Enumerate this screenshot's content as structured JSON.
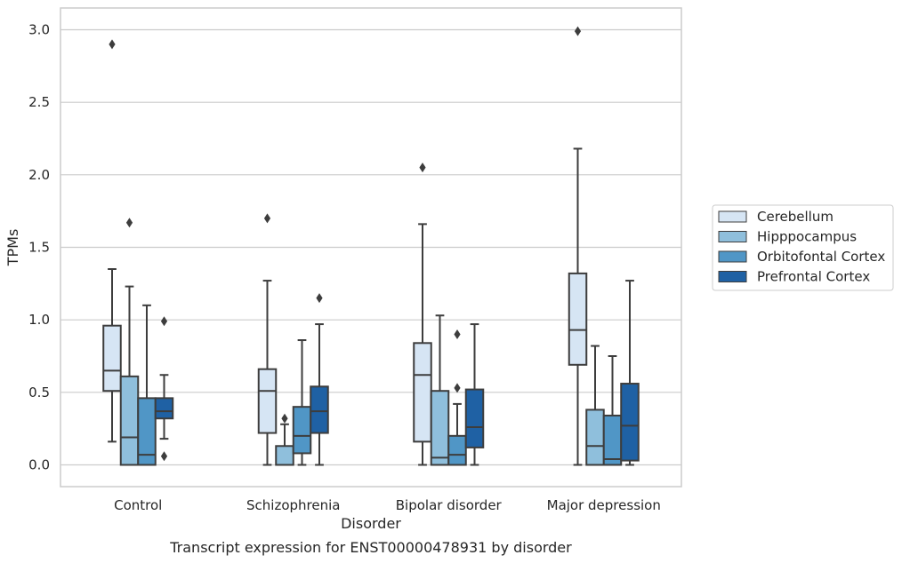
{
  "chart_data": {
    "type": "box",
    "xlabel": "Disorder",
    "ylabel": "TPMs",
    "caption": "Transcript expression for ENST00000478931 by disorder",
    "categories": [
      "Control",
      "Schizophrenia",
      "Bipolar disorder",
      "Major depression"
    ],
    "ylim": [
      -0.15,
      3.15
    ],
    "yticks": [
      0.0,
      0.5,
      1.0,
      1.5,
      2.0,
      2.5,
      3.0
    ],
    "ytick_labels": [
      "0.0",
      "0.5",
      "1.0",
      "1.5",
      "2.0",
      "2.5",
      "3.0"
    ],
    "grid": "horizontal",
    "legend_position": "right",
    "series": [
      {
        "name": "Cerebellum",
        "color": "#d6e5f4",
        "boxes": [
          {
            "min": 0.16,
            "q1": 0.51,
            "median": 0.65,
            "q3": 0.96,
            "max": 1.35,
            "outliers": [
              2.9
            ]
          },
          {
            "min": 0.0,
            "q1": 0.22,
            "median": 0.51,
            "q3": 0.66,
            "max": 1.27,
            "outliers": [
              1.7
            ]
          },
          {
            "min": 0.0,
            "q1": 0.16,
            "median": 0.62,
            "q3": 0.84,
            "max": 1.66,
            "outliers": [
              2.05
            ]
          },
          {
            "min": 0.0,
            "q1": 0.69,
            "median": 0.93,
            "q3": 1.32,
            "max": 2.18,
            "outliers": [
              2.99
            ]
          }
        ]
      },
      {
        "name": "Hipppocampus",
        "color": "#8fbfdc",
        "boxes": [
          {
            "min": 0.0,
            "q1": 0.0,
            "median": 0.19,
            "q3": 0.61,
            "max": 1.23,
            "outliers": [
              1.67
            ]
          },
          {
            "min": 0.0,
            "q1": 0.0,
            "median": 0.0,
            "q3": 0.13,
            "max": 0.28,
            "outliers": [
              0.32
            ]
          },
          {
            "min": 0.0,
            "q1": 0.0,
            "median": 0.05,
            "q3": 0.51,
            "max": 1.03,
            "outliers": []
          },
          {
            "min": 0.0,
            "q1": 0.0,
            "median": 0.13,
            "q3": 0.38,
            "max": 0.82,
            "outliers": []
          }
        ]
      },
      {
        "name": "Orbitofontal Cortex",
        "color": "#5096c6",
        "boxes": [
          {
            "min": 0.0,
            "q1": 0.0,
            "median": 0.07,
            "q3": 0.46,
            "max": 1.1,
            "outliers": []
          },
          {
            "min": 0.0,
            "q1": 0.08,
            "median": 0.2,
            "q3": 0.4,
            "max": 0.86,
            "outliers": []
          },
          {
            "min": 0.0,
            "q1": 0.0,
            "median": 0.07,
            "q3": 0.2,
            "max": 0.42,
            "outliers": [
              0.9,
              0.53
            ]
          },
          {
            "min": 0.0,
            "q1": 0.0,
            "median": 0.04,
            "q3": 0.34,
            "max": 0.75,
            "outliers": []
          }
        ]
      },
      {
        "name": "Prefrontal Cortex",
        "color": "#1f61a4",
        "boxes": [
          {
            "min": 0.18,
            "q1": 0.32,
            "median": 0.37,
            "q3": 0.46,
            "max": 0.62,
            "outliers": [
              0.99,
              0.06
            ]
          },
          {
            "min": 0.0,
            "q1": 0.22,
            "median": 0.37,
            "q3": 0.54,
            "max": 0.97,
            "outliers": [
              1.15
            ]
          },
          {
            "min": 0.0,
            "q1": 0.12,
            "median": 0.26,
            "q3": 0.52,
            "max": 0.97,
            "outliers": []
          },
          {
            "min": 0.0,
            "q1": 0.03,
            "median": 0.27,
            "q3": 0.56,
            "max": 1.27,
            "outliers": []
          }
        ]
      }
    ]
  }
}
